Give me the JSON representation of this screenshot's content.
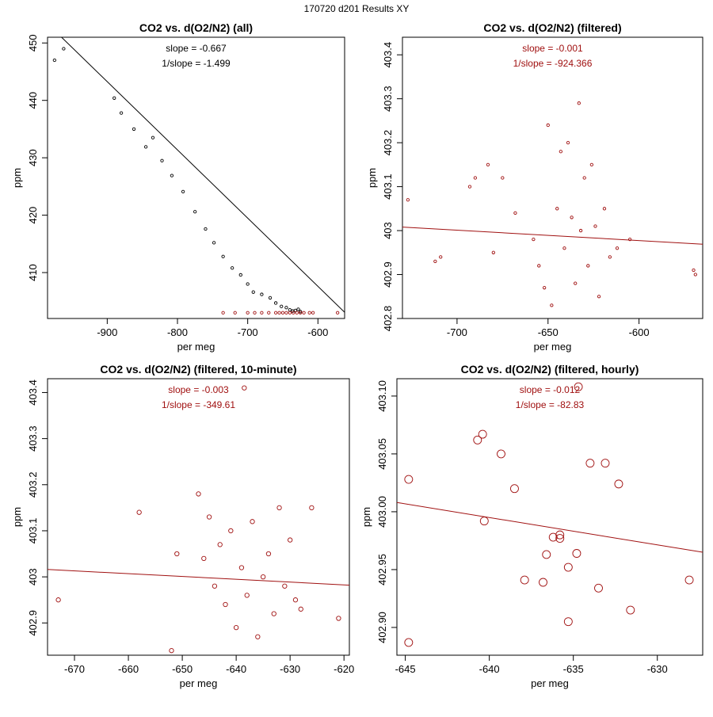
{
  "page_title": "170720   d201   Results XY",
  "chart_data": [
    {
      "type": "scatter",
      "title": "CO2 vs. d(O2/N2) (all)",
      "xlabel": "per meg",
      "ylabel": "ppm",
      "xlim": [
        -985,
        -562
      ],
      "ylim": [
        402.0,
        451.0
      ],
      "xticks": [
        -900,
        -800,
        -700,
        -600
      ],
      "yticks": [
        410,
        420,
        430,
        440,
        450
      ],
      "annotation_lines": [
        "slope = -0.667",
        "1/slope = -1.499"
      ],
      "annotation_color": "#000000",
      "fit_line": {
        "x": [
          -985,
          -562
        ],
        "y": [
          453.37,
          403.08
        ],
        "color": "#000000"
      },
      "series": [
        {
          "name": "all",
          "color": "#000000",
          "marker": "small-circle",
          "points": [
            [
              -975,
              447.0
            ],
            [
              -962,
              449.0
            ],
            [
              -890,
              440.4
            ],
            [
              -880,
              437.8
            ],
            [
              -862,
              435.0
            ],
            [
              -845,
              431.9
            ],
            [
              -835,
              433.5
            ],
            [
              -822,
              429.5
            ],
            [
              -808,
              426.9
            ],
            [
              -792,
              424.1
            ],
            [
              -775,
              420.6
            ],
            [
              -760,
              417.6
            ],
            [
              -748,
              415.2
            ],
            [
              -735,
              412.8
            ],
            [
              -722,
              410.8
            ],
            [
              -710,
              409.6
            ],
            [
              -700,
              408.0
            ],
            [
              -692,
              406.6
            ],
            [
              -680,
              406.2
            ],
            [
              -668,
              405.6
            ],
            [
              -660,
              404.7
            ],
            [
              -652,
              404.1
            ],
            [
              -645,
              403.9
            ],
            [
              -640,
              403.5
            ],
            [
              -636,
              403.3
            ],
            [
              -632,
              403.4
            ],
            [
              -628,
              403.6
            ],
            [
              -625,
              403.2
            ]
          ]
        },
        {
          "name": "filtered",
          "color": "#a01010",
          "marker": "small-circle",
          "points": [
            [
              -735,
              403.0
            ],
            [
              -718,
              403.0
            ],
            [
              -700,
              403.0
            ],
            [
              -690,
              403.0
            ],
            [
              -680,
              403.0
            ],
            [
              -670,
              403.0
            ],
            [
              -660,
              403.0
            ],
            [
              -655,
              403.0
            ],
            [
              -650,
              403.0
            ],
            [
              -645,
              403.0
            ],
            [
              -640,
              403.0
            ],
            [
              -635,
              403.0
            ],
            [
              -630,
              403.0
            ],
            [
              -625,
              403.0
            ],
            [
              -620,
              403.0
            ],
            [
              -612,
              403.0
            ],
            [
              -607,
              403.0
            ],
            [
              -572,
              403.0
            ]
          ]
        }
      ]
    },
    {
      "type": "scatter",
      "title": "CO2 vs. d(O2/N2) (filtered)",
      "xlabel": "per meg",
      "ylabel": "ppm",
      "xlim": [
        -730,
        -565
      ],
      "ylim": [
        402.8,
        403.44
      ],
      "xticks": [
        -700,
        -650,
        -600
      ],
      "yticks": [
        402.8,
        402.9,
        403.0,
        403.1,
        403.2,
        403.3,
        403.4
      ],
      "annotation_lines": [
        "slope = -0.001",
        "1/slope = -924.366"
      ],
      "annotation_color": "#a01010",
      "fit_line": {
        "x": [
          -730,
          -565
        ],
        "y": [
          403.008,
          402.969
        ],
        "color": "#a01010"
      },
      "series": [
        {
          "name": "filtered",
          "color": "#a01010",
          "marker": "small-circle",
          "points": [
            [
              -727,
              403.07
            ],
            [
              -712,
              402.93
            ],
            [
              -709,
              402.94
            ],
            [
              -693,
              403.1
            ],
            [
              -690,
              403.12
            ],
            [
              -683,
              403.15
            ],
            [
              -680,
              402.95
            ],
            [
              -675,
              403.12
            ],
            [
              -668,
              403.04
            ],
            [
              -658,
              402.98
            ],
            [
              -655,
              402.92
            ],
            [
              -652,
              402.87
            ],
            [
              -650,
              403.24
            ],
            [
              -648,
              402.83
            ],
            [
              -645,
              403.05
            ],
            [
              -643,
              403.18
            ],
            [
              -641,
              402.96
            ],
            [
              -639,
              403.2
            ],
            [
              -637,
              403.03
            ],
            [
              -635,
              402.88
            ],
            [
              -633,
              403.29
            ],
            [
              -632,
              403.0
            ],
            [
              -630,
              403.12
            ],
            [
              -628,
              402.92
            ],
            [
              -626,
              403.15
            ],
            [
              -624,
              403.01
            ],
            [
              -622,
              402.85
            ],
            [
              -619,
              403.05
            ],
            [
              -616,
              402.94
            ],
            [
              -612,
              402.96
            ],
            [
              -605,
              402.98
            ],
            [
              -570,
              402.91
            ],
            [
              -569,
              402.9
            ]
          ]
        }
      ]
    },
    {
      "type": "scatter",
      "title": "CO2 vs. d(O2/N2) (filtered, 10-minute)",
      "xlabel": "per meg",
      "ylabel": "ppm",
      "xlim": [
        -675,
        -619
      ],
      "ylim": [
        402.83,
        403.43
      ],
      "xticks": [
        -670,
        -660,
        -650,
        -640,
        -630,
        -620
      ],
      "yticks": [
        402.9,
        403.0,
        403.1,
        403.2,
        403.3,
        403.4
      ],
      "annotation_lines": [
        "slope = -0.003",
        "1/slope = -349.61"
      ],
      "annotation_color": "#a01010",
      "fit_line": {
        "x": [
          -675,
          -619
        ],
        "y": [
          403.016,
          402.982
        ],
        "color": "#a01010"
      },
      "series": [
        {
          "name": "10-minute",
          "color": "#a01010",
          "marker": "circle",
          "points": [
            [
              -673,
              402.95
            ],
            [
              -658,
              403.14
            ],
            [
              -652,
              402.84
            ],
            [
              -651,
              403.05
            ],
            [
              -647,
              403.18
            ],
            [
              -646,
              403.04
            ],
            [
              -645,
              403.13
            ],
            [
              -644,
              402.98
            ],
            [
              -643,
              403.07
            ],
            [
              -642,
              402.94
            ],
            [
              -641,
              403.1
            ],
            [
              -640,
              402.89
            ],
            [
              -639,
              403.02
            ],
            [
              -638,
              402.96
            ],
            [
              -637,
              403.12
            ],
            [
              -636,
              402.87
            ],
            [
              -635,
              403.0
            ],
            [
              -634,
              403.05
            ],
            [
              -633,
              402.92
            ],
            [
              -632,
              403.15
            ],
            [
              -631,
              402.98
            ],
            [
              -630,
              403.08
            ],
            [
              -629,
              402.95
            ],
            [
              -628,
              402.93
            ],
            [
              -626,
              403.15
            ],
            [
              -621,
              402.91
            ],
            [
              -638.5,
              403.41
            ]
          ]
        }
      ]
    },
    {
      "type": "scatter",
      "title": "CO2 vs. d(O2/N2) (filtered, hourly)",
      "xlabel": "per meg",
      "ylabel": "ppm",
      "xlim": [
        -645.5,
        -627.3
      ],
      "ylim": [
        402.876,
        403.115
      ],
      "xticks": [
        -645,
        -640,
        -635,
        -630
      ],
      "yticks": [
        402.9,
        402.95,
        403.0,
        403.05,
        403.1
      ],
      "yticklabels": [
        "402.90",
        "402.95",
        "403.00",
        "403.05",
        "403.10"
      ],
      "annotation_lines": [
        "slope = -0.012",
        "1/slope = -82.83"
      ],
      "annotation_color": "#a01010",
      "fit_line": {
        "x": [
          -645.5,
          -627.3
        ],
        "y": [
          403.008,
          402.965
        ],
        "color": "#a01010"
      },
      "series": [
        {
          "name": "hourly",
          "color": "#a01010",
          "marker": "large-circle",
          "points": [
            [
              -644.8,
              403.028
            ],
            [
              -644.8,
              402.887
            ],
            [
              -640.7,
              403.062
            ],
            [
              -640.4,
              403.067
            ],
            [
              -640.3,
              402.992
            ],
            [
              -639.3,
              403.05
            ],
            [
              -638.5,
              403.02
            ],
            [
              -637.9,
              402.941
            ],
            [
              -636.8,
              402.939
            ],
            [
              -636.6,
              402.963
            ],
            [
              -636.2,
              402.978
            ],
            [
              -635.8,
              402.98
            ],
            [
              -635.8,
              402.977
            ],
            [
              -635.3,
              402.952
            ],
            [
              -635.3,
              402.905
            ],
            [
              -634.8,
              402.964
            ],
            [
              -634.7,
              403.108
            ],
            [
              -634.0,
              403.042
            ],
            [
              -633.5,
              402.934
            ],
            [
              -633.1,
              403.042
            ],
            [
              -632.3,
              403.024
            ],
            [
              -631.6,
              402.915
            ],
            [
              -628.1,
              402.941
            ]
          ]
        }
      ]
    }
  ]
}
